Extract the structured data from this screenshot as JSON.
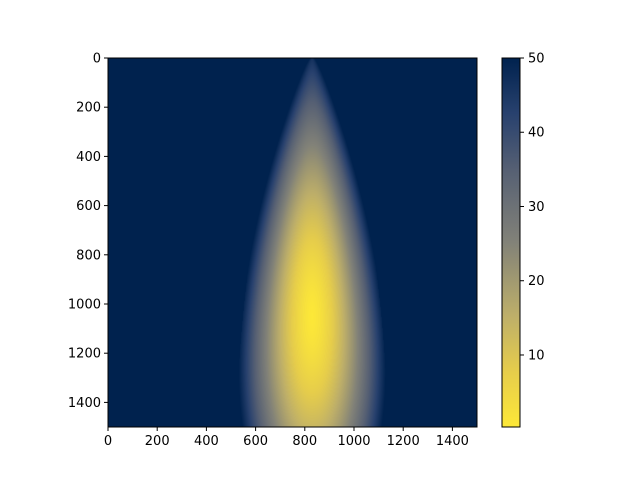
{
  "chart_data": {
    "type": "heatmap",
    "title": "",
    "xlabel": "",
    "ylabel": "",
    "xlim": [
      0,
      1500
    ],
    "ylim": [
      1500,
      0
    ],
    "x_ticks": [
      0,
      200,
      400,
      600,
      800,
      1000,
      1200,
      1400
    ],
    "y_ticks": [
      0,
      200,
      400,
      600,
      800,
      1000,
      1200,
      1400
    ],
    "x_tick_labels": [
      "0",
      "200",
      "400",
      "600",
      "800",
      "1000",
      "1200",
      "1400"
    ],
    "y_tick_labels": [
      "0",
      "200",
      "400",
      "600",
      "800",
      "1000",
      "1200",
      "1400"
    ],
    "colormap": "cividis_r",
    "colorbar": {
      "range": [
        0.3,
        50
      ],
      "ticks": [
        10,
        20,
        30,
        40,
        50
      ],
      "tick_labels": [
        "10",
        "20",
        "30",
        "40",
        "50"
      ]
    },
    "field": {
      "description_of_shape": "elliptical low-value region, values saturate at 50 elsewhere",
      "center_x": 830,
      "min_at_y": 1050,
      "top_y": 0,
      "bottom_y": 1500,
      "half_width_at_top": 0,
      "max_half_width": 330,
      "min_value": 0.3,
      "max_value": 50
    },
    "colors": {
      "low": "#fde838",
      "mid": "#7c7b78",
      "high": "#00224e"
    }
  }
}
